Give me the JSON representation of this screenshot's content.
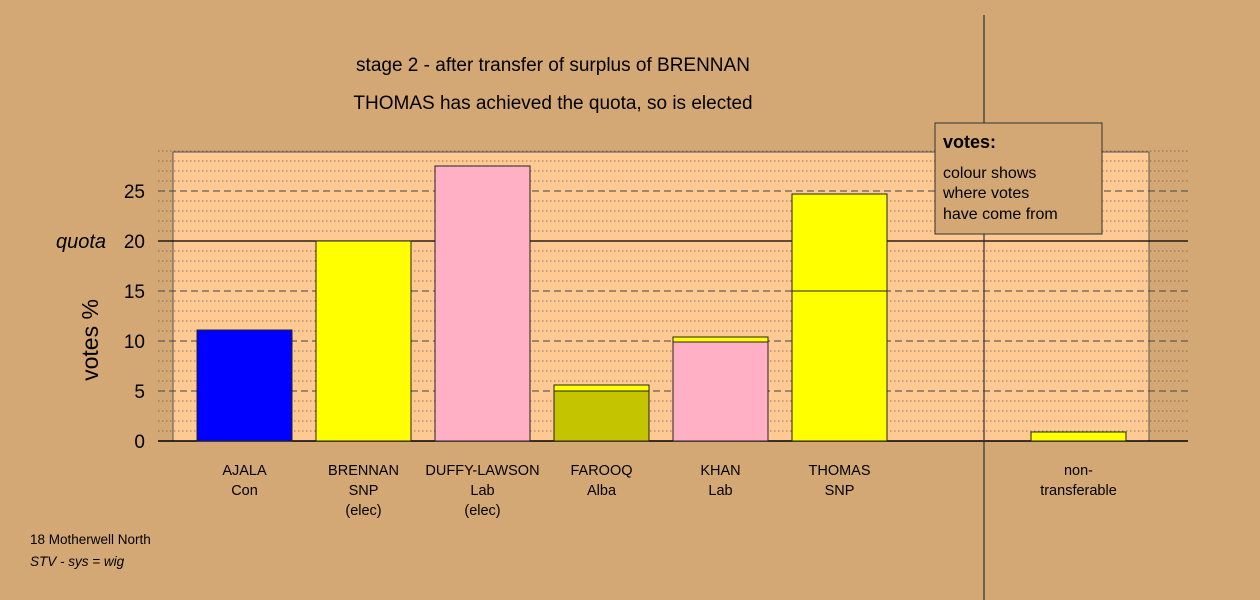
{
  "chart_data": {
    "type": "bar",
    "title_lines": [
      "stage 2 - after transfer of surplus of BRENNAN",
      "THOMAS has achieved the quota, so is elected"
    ],
    "ylabel": "votes %",
    "quota_label": "quota",
    "quota": 20,
    "ylim": [
      0,
      29
    ],
    "yticks": [
      0,
      5,
      10,
      15,
      20,
      25
    ],
    "grid": "dashed at major ticks, dotted at minor",
    "colors": {
      "background": "#d3a874",
      "plot_background": "#ffc994",
      "Con": "#0000ff",
      "SNP": "#ffff00",
      "Lab": "#ffb0c4",
      "Alba": "#c4c400"
    },
    "candidates": [
      {
        "name": "AJALA",
        "party": "Con",
        "note": "",
        "segments": [
          {
            "from": "Con",
            "value": 11.1
          }
        ]
      },
      {
        "name": "BRENNAN",
        "party": "SNP",
        "note": "(elec)",
        "segments": [
          {
            "from": "SNP",
            "value": 20.0
          }
        ]
      },
      {
        "name": "DUFFY-LAWSON",
        "party": "Lab",
        "note": "(elec)",
        "segments": [
          {
            "from": "Lab",
            "value": 27.5
          }
        ]
      },
      {
        "name": "FAROOQ",
        "party": "Alba",
        "note": "",
        "segments": [
          {
            "from": "Alba",
            "value": 5.0
          },
          {
            "from": "SNP",
            "value": 0.6
          }
        ]
      },
      {
        "name": "KHAN",
        "party": "Lab",
        "note": "",
        "segments": [
          {
            "from": "Lab",
            "value": 9.9
          },
          {
            "from": "SNP",
            "value": 0.5
          }
        ]
      },
      {
        "name": "THOMAS",
        "party": "SNP",
        "note": "",
        "segments": [
          {
            "from": "SNP",
            "value": 15.0
          },
          {
            "from": "SNP",
            "value": 9.7
          }
        ]
      }
    ],
    "non_transferable": {
      "label_lines": [
        "non-",
        "transferable"
      ],
      "segments": [
        {
          "from": "SNP",
          "value": 0.9
        }
      ]
    },
    "legend": {
      "position": "top-right",
      "title": "votes:",
      "lines": [
        "colour shows",
        "where votes",
        "have come from"
      ]
    }
  },
  "footer": {
    "line1": "18 Motherwell North",
    "line2": "STV - sys = wig"
  }
}
